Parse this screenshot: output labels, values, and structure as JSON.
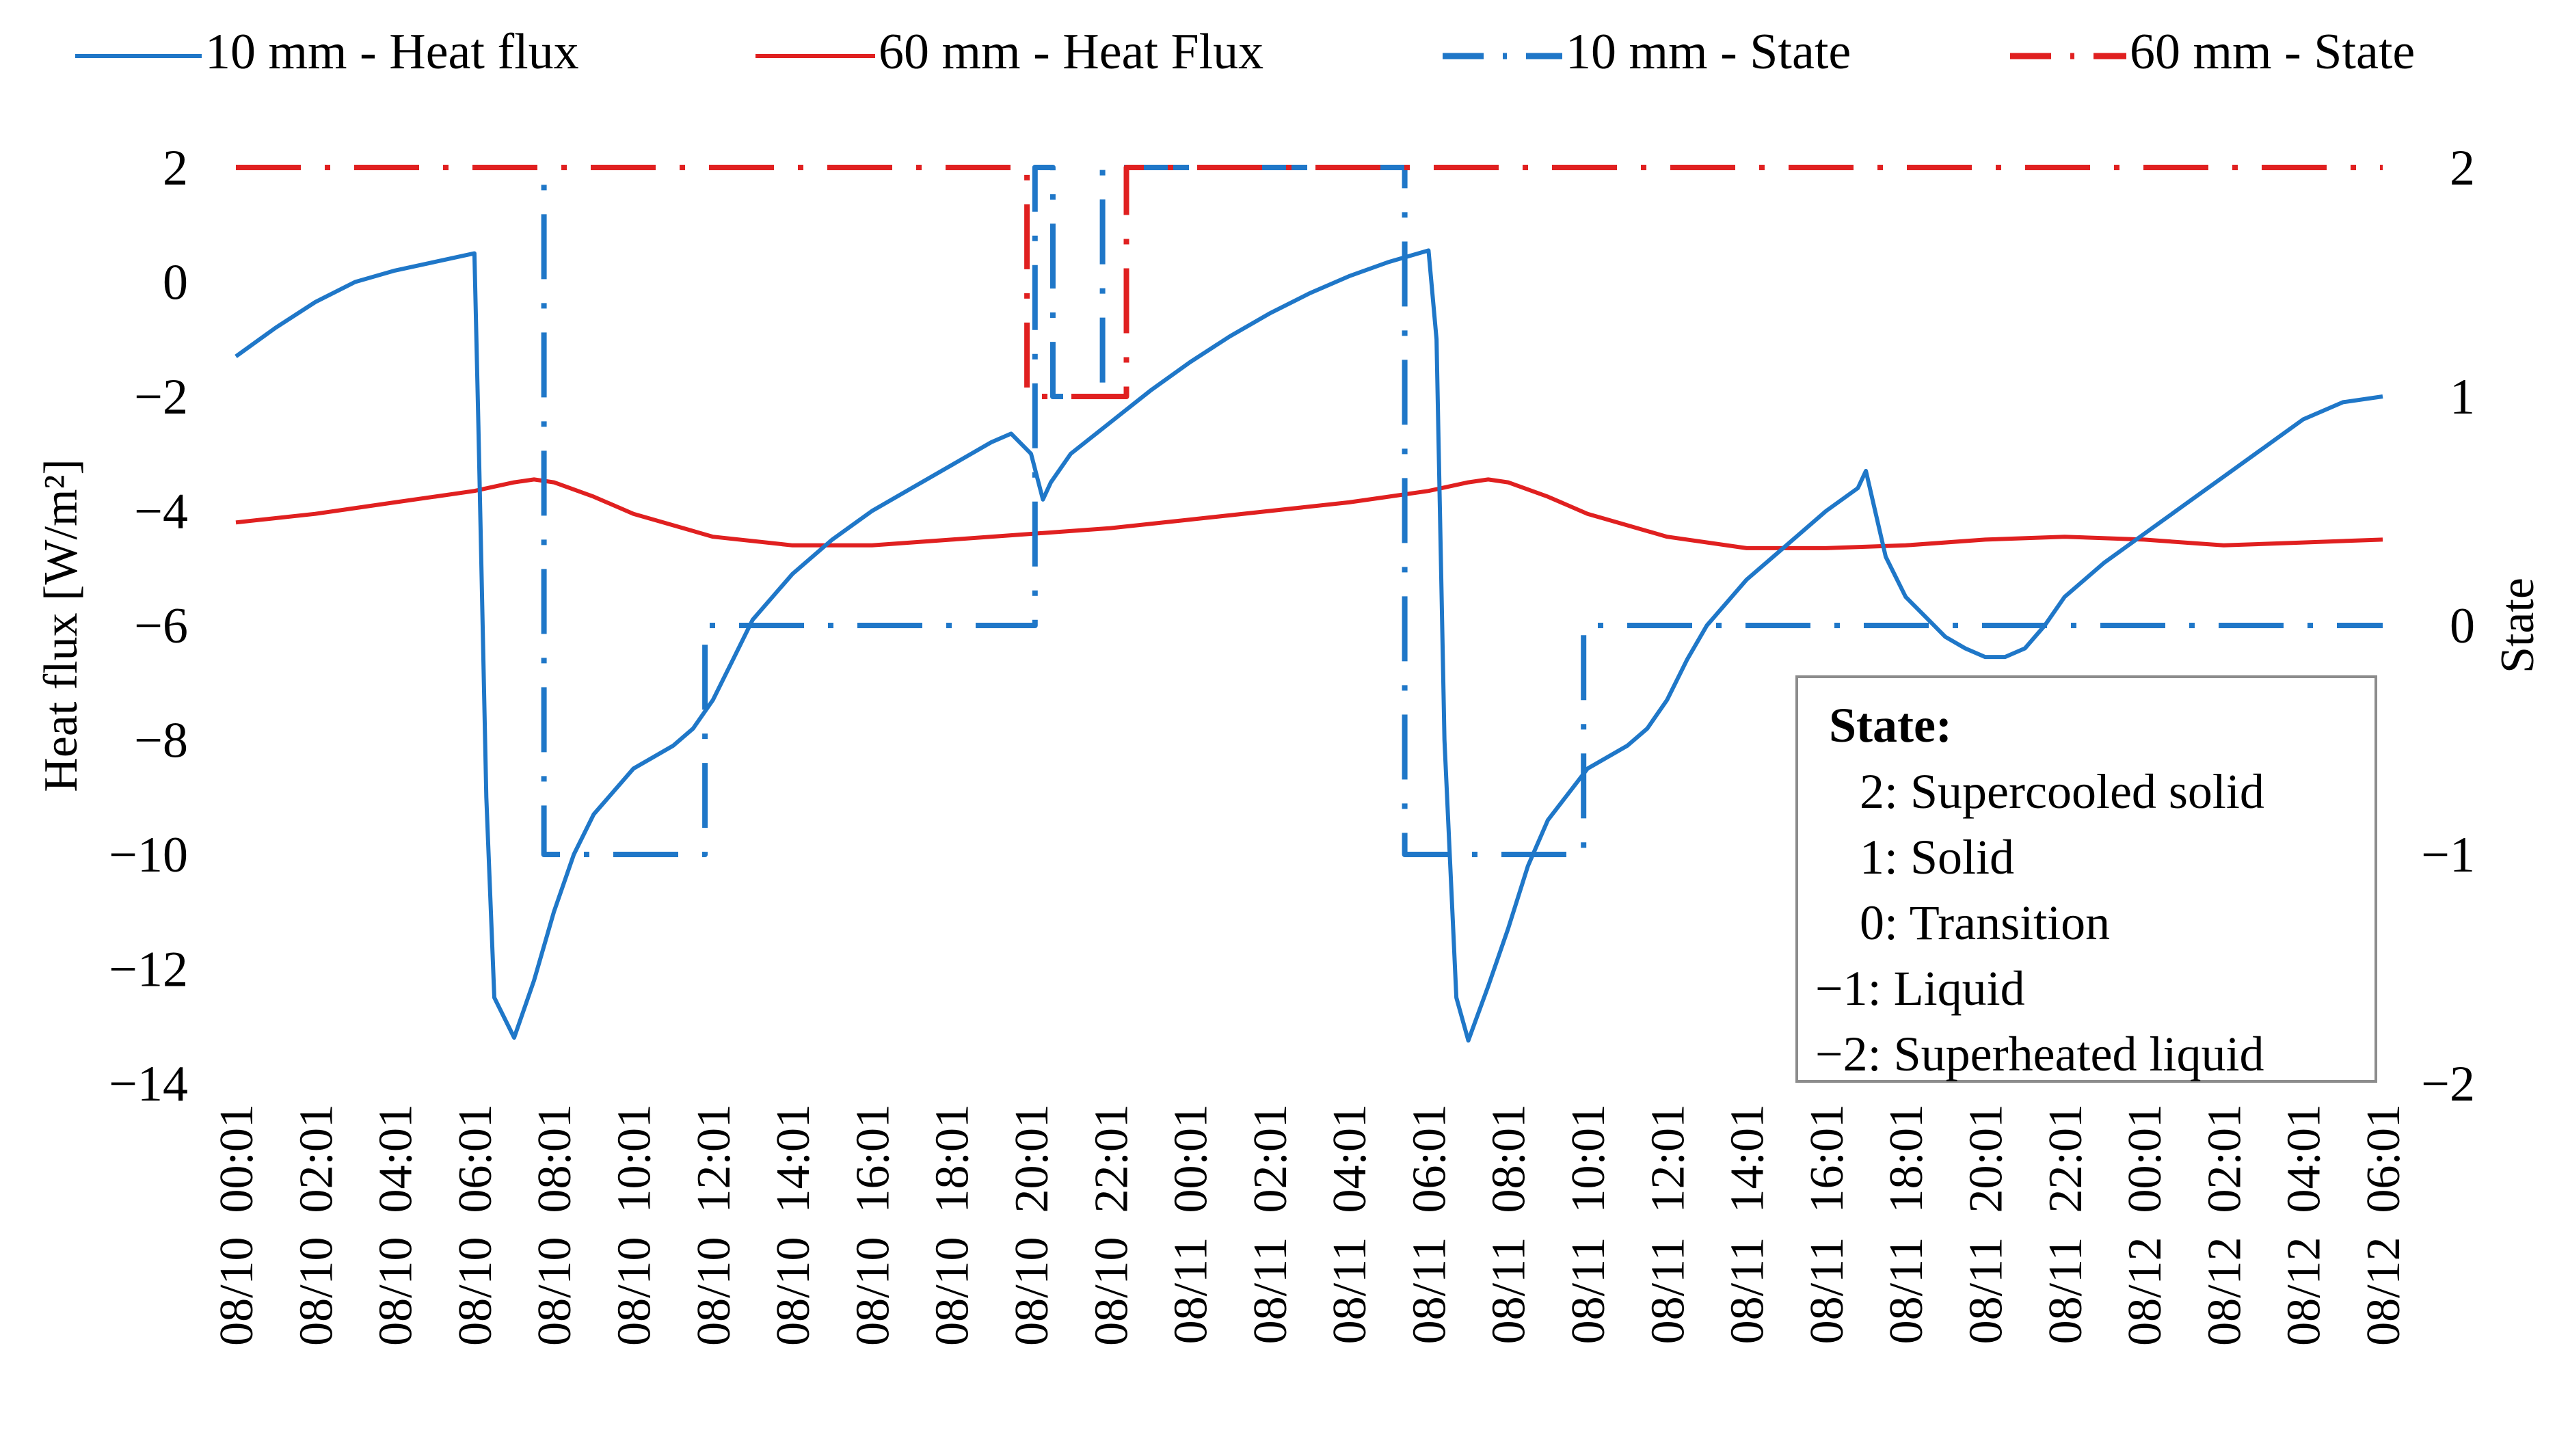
{
  "chart_data": {
    "type": "line",
    "title": "",
    "ylabel_left": "Heat flux [W/m²]",
    "ylabel_right": "State",
    "ylim_left": [
      -14,
      2
    ],
    "ylim_right": [
      -2,
      2
    ],
    "yticks_left": [
      "2",
      "0",
      "−2",
      "−4",
      "−6",
      "−8",
      "−10",
      "−12",
      "−14"
    ],
    "yticks_left_values": [
      2,
      0,
      -2,
      -4,
      -6,
      -8,
      -10,
      -12,
      -14
    ],
    "yticks_right": [
      "2",
      "1",
      "0",
      "−1",
      "−2"
    ],
    "yticks_right_values": [
      2,
      1,
      0,
      -1,
      -2
    ],
    "x_hours_range": [
      0,
      54
    ],
    "x_tick_labels": [
      "08/10  00:01",
      "08/10  02:01",
      "08/10  04:01",
      "08/10  06:01",
      "08/10  08:01",
      "08/10  10:01",
      "08/10  12:01",
      "08/10  14:01",
      "08/10  16:01",
      "08/10  18:01",
      "08/10  20:01",
      "08/10  22:01",
      "08/11  00:01",
      "08/11  02:01",
      "08/11  04:01",
      "08/11  06:01",
      "08/11  08:01",
      "08/11  10:01",
      "08/11  12:01",
      "08/11  14:01",
      "08/11  16:01",
      "08/11  18:01",
      "08/11  20:01",
      "08/11  22:01",
      "08/12  00:01",
      "08/12  02:01",
      "08/12  04:01",
      "08/12  06:01"
    ],
    "legend": [
      "10 mm - Heat flux",
      "60 mm - Heat Flux",
      "10 mm - State",
      "60 mm - State"
    ],
    "legend_position": "top",
    "state_box": {
      "title": "State:",
      "lines": [
        "2: Supercooled solid",
        "1: Solid",
        "0: Transition",
        "−1: Liquid",
        "−2: Superheated liquid"
      ]
    },
    "series": [
      {
        "name": "10 mm - Heat flux",
        "axis": "left",
        "color": "#1f77c8",
        "style": "solid",
        "x": [
          0,
          1,
          2,
          3,
          4,
          5,
          6,
          6.1,
          6.3,
          6.5,
          7,
          7.5,
          8,
          8.5,
          9,
          10,
          11,
          11.5,
          12,
          12.5,
          13,
          14,
          15,
          16,
          17,
          18,
          19,
          19.5,
          20,
          20.3,
          20.5,
          21,
          22,
          23,
          24,
          25,
          26,
          27,
          28,
          29,
          30,
          30.2,
          30.4,
          30.7,
          31,
          31.5,
          32,
          32.5,
          33,
          34,
          35,
          35.5,
          36,
          36.5,
          37,
          38,
          39,
          40,
          40.8,
          41,
          41.5,
          42,
          42.5,
          43,
          43.5,
          44,
          44.5,
          45,
          45.5,
          46,
          47,
          48,
          49,
          50,
          51,
          52,
          53,
          54
        ],
        "y": [
          -1.3,
          -0.8,
          -0.35,
          0.0,
          0.2,
          0.35,
          0.5,
          -2.5,
          -9.0,
          -12.5,
          -13.2,
          -12.2,
          -11.0,
          -10.0,
          -9.3,
          -8.5,
          -8.1,
          -7.8,
          -7.3,
          -6.6,
          -5.9,
          -5.1,
          -4.5,
          -4.0,
          -3.6,
          -3.2,
          -2.8,
          -2.65,
          -3.0,
          -3.8,
          -3.5,
          -3.0,
          -2.45,
          -1.9,
          -1.4,
          -0.95,
          -0.55,
          -0.2,
          0.1,
          0.35,
          0.55,
          -1.0,
          -8.0,
          -12.5,
          -13.25,
          -12.3,
          -11.3,
          -10.2,
          -9.4,
          -8.5,
          -8.1,
          -7.8,
          -7.3,
          -6.6,
          -6.0,
          -5.2,
          -4.6,
          -4.0,
          -3.6,
          -3.3,
          -4.8,
          -5.5,
          -5.85,
          -6.2,
          -6.4,
          -6.55,
          -6.55,
          -6.4,
          -6.0,
          -5.5,
          -4.9,
          -4.4,
          -3.9,
          -3.4,
          -2.9,
          -2.4,
          -2.1,
          -2.0
        ]
      },
      {
        "name": "60 mm - Heat Flux",
        "axis": "left",
        "color": "#e02020",
        "style": "solid",
        "x": [
          0,
          2,
          4,
          6,
          7,
          7.5,
          8,
          9,
          10,
          12,
          14,
          16,
          18,
          20,
          22,
          24,
          26,
          28,
          30,
          31,
          31.5,
          32,
          33,
          34,
          36,
          38,
          40,
          42,
          44,
          46,
          48,
          50,
          52,
          54
        ],
        "y": [
          -4.2,
          -4.05,
          -3.85,
          -3.65,
          -3.5,
          -3.45,
          -3.5,
          -3.75,
          -4.05,
          -4.45,
          -4.6,
          -4.6,
          -4.5,
          -4.4,
          -4.3,
          -4.15,
          -4.0,
          -3.85,
          -3.65,
          -3.5,
          -3.45,
          -3.5,
          -3.75,
          -4.05,
          -4.45,
          -4.65,
          -4.65,
          -4.6,
          -4.5,
          -4.45,
          -4.5,
          -4.6,
          -4.55,
          -4.5
        ]
      },
      {
        "name": "10 mm - State",
        "axis": "right",
        "color": "#1f77c8",
        "style": "dashdot",
        "x": [
          0,
          7.75,
          7.75,
          11.8,
          11.8,
          20.1,
          20.1,
          20.55,
          20.55,
          21.8,
          21.8,
          29.4,
          29.4,
          33.9,
          33.9,
          54
        ],
        "y": [
          2,
          2,
          -1,
          -1,
          0,
          0,
          2,
          2,
          1,
          1,
          2,
          2,
          -1,
          -1,
          0,
          0
        ]
      },
      {
        "name": "60 mm - State",
        "axis": "right",
        "color": "#e02020",
        "style": "dashdot",
        "x": [
          0,
          19.9,
          19.9,
          22.4,
          22.4,
          54
        ],
        "y": [
          2,
          2,
          1,
          1,
          2,
          2
        ]
      }
    ]
  }
}
